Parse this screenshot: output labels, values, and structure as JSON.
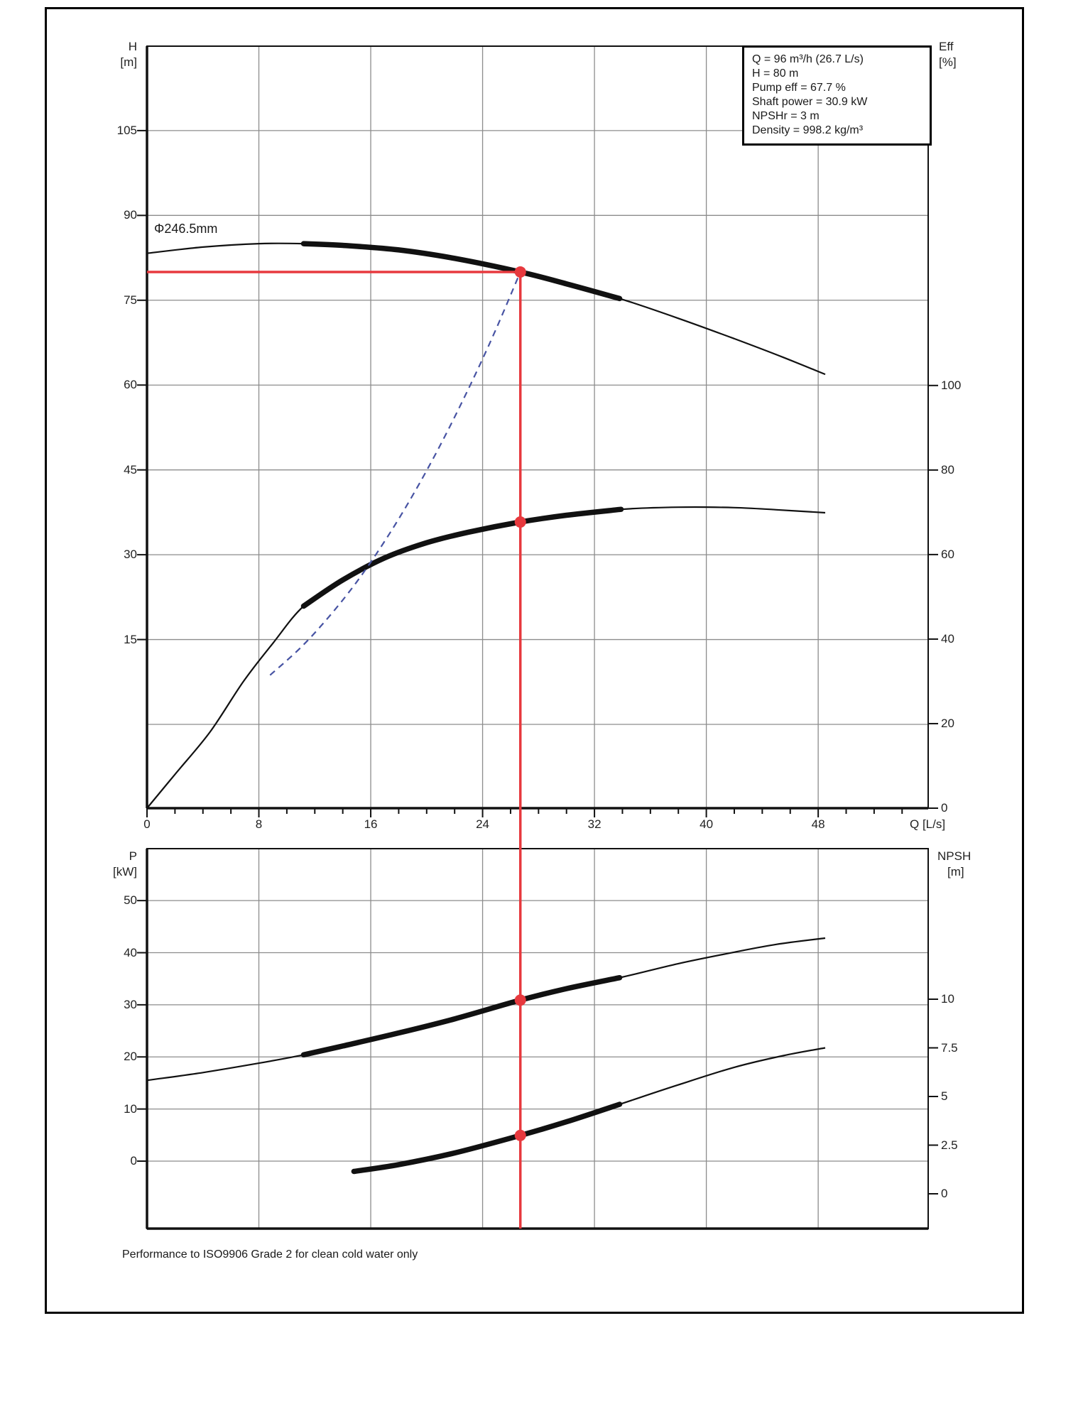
{
  "figure": {
    "phi_label": "Φ246.5mm",
    "iso_note": "Performance to ISO9906 Grade 2 for clean cold water only",
    "q_axis_label": "Q [L/s]"
  },
  "info_box": {
    "lines": [
      "Q = 96 m³/h (26.7 L/s)",
      "H = 80 m",
      "Pump eff = 67.7 %",
      "Shaft power = 30.9 kW",
      "NPSHr = 3 m",
      "Density = 998.2 kg/m³"
    ]
  },
  "axes": {
    "top_left": {
      "name": "H",
      "unit": "[m]"
    },
    "top_right": {
      "name": "Eff",
      "unit": "[%]"
    },
    "bottom_left": {
      "name": "P",
      "unit": "[kW]"
    },
    "bottom_right": {
      "name": "NPSH",
      "unit": "[m]"
    }
  },
  "colors": {
    "red": "#e7393e",
    "blue": "#4753a3",
    "grid": "#8c8c8c",
    "axis": "#111111",
    "curve": "#111111"
  },
  "chart_data": {
    "type": "line",
    "title": "Pump performance curves",
    "x_axis": {
      "label": "Q [L/s]",
      "ticks": [
        0,
        8,
        16,
        24,
        32,
        40,
        48
      ],
      "minor_step": 2,
      "max": 55.9
    },
    "top_chart": {
      "left_axis_label": "H [m]",
      "right_axis_label": "Eff [%]",
      "h_tick_labels": [
        105,
        90,
        75,
        60,
        45,
        30,
        15
      ],
      "h_gridlines": [
        105,
        90,
        75,
        60,
        45,
        30,
        15,
        0
      ],
      "eff_tick_labels": [
        100,
        80,
        60,
        40,
        20,
        0
      ],
      "impeller_label": "Φ246.5mm"
    },
    "bottom_chart": {
      "left_axis_label": "P [kW]",
      "right_axis_label": "NPSH [m]",
      "p_tick_labels": [
        50,
        40,
        30,
        20,
        10,
        0
      ],
      "p_gridlines": [
        50,
        40,
        30,
        20,
        10,
        0
      ],
      "npsh_tick_labels": [
        10,
        7.5,
        5,
        2.5,
        0
      ]
    },
    "series": [
      {
        "name": "head-curve",
        "chart": "top",
        "axis": "H",
        "style": "solid",
        "thick_range": [
          11.2,
          33.8
        ],
        "points": [
          [
            0,
            83.3
          ],
          [
            4,
            84.4
          ],
          [
            8,
            85.0
          ],
          [
            11.2,
            85.0
          ],
          [
            14,
            84.7
          ],
          [
            18,
            83.9
          ],
          [
            22,
            82.4
          ],
          [
            26.7,
            80.0
          ],
          [
            30,
            77.9
          ],
          [
            33.8,
            75.3
          ],
          [
            38,
            71.8
          ],
          [
            42,
            68.2
          ],
          [
            45.5,
            64.9
          ],
          [
            48.5,
            61.9
          ]
        ]
      },
      {
        "name": "efficiency-curve",
        "chart": "top",
        "axis": "Eff",
        "style": "solid",
        "thick_range": [
          11.2,
          33.9
        ],
        "points": [
          [
            0,
            0
          ],
          [
            2,
            8
          ],
          [
            4.5,
            18
          ],
          [
            6.9,
            30
          ],
          [
            9,
            39
          ],
          [
            11.2,
            47.8
          ],
          [
            14,
            54
          ],
          [
            17,
            59.2
          ],
          [
            20,
            62.8
          ],
          [
            23,
            65.3
          ],
          [
            26.7,
            67.7
          ],
          [
            30,
            69.3
          ],
          [
            33.9,
            70.7
          ],
          [
            38,
            71.2
          ],
          [
            42,
            71.1
          ],
          [
            45,
            70.6
          ],
          [
            48.5,
            69.9
          ]
        ]
      },
      {
        "name": "system-curve",
        "chart": "top",
        "axis": "H",
        "style": "dashed",
        "color": "blue",
        "points": [
          [
            8.8,
            8.7
          ],
          [
            11,
            13.6
          ],
          [
            13,
            19.0
          ],
          [
            15,
            25.2
          ],
          [
            17,
            32.4
          ],
          [
            19,
            40.5
          ],
          [
            21,
            49.5
          ],
          [
            23,
            59.4
          ],
          [
            24.8,
            69.0
          ],
          [
            26.7,
            80.0
          ]
        ]
      },
      {
        "name": "power-curve",
        "chart": "bottom",
        "axis": "P",
        "style": "solid",
        "thick_range": [
          11.2,
          33.8
        ],
        "points": [
          [
            0,
            15.5
          ],
          [
            4,
            17.0
          ],
          [
            8,
            18.8
          ],
          [
            11.2,
            20.4
          ],
          [
            14,
            22.1
          ],
          [
            18,
            24.6
          ],
          [
            22,
            27.3
          ],
          [
            26.7,
            30.9
          ],
          [
            30,
            33.1
          ],
          [
            33.8,
            35.2
          ],
          [
            38,
            37.9
          ],
          [
            42,
            40.1
          ],
          [
            45,
            41.6
          ],
          [
            48.5,
            42.8
          ]
        ]
      },
      {
        "name": "npsh-curve",
        "chart": "bottom",
        "axis": "NPSH",
        "style": "solid",
        "thick_range": [
          14.8,
          33.8
        ],
        "points": [
          [
            14.8,
            1.15
          ],
          [
            18,
            1.5
          ],
          [
            22,
            2.1
          ],
          [
            26.7,
            3.0
          ],
          [
            30,
            3.7
          ],
          [
            33.8,
            4.6
          ],
          [
            38,
            5.6
          ],
          [
            42,
            6.5
          ],
          [
            45.5,
            7.1
          ],
          [
            48.5,
            7.5
          ]
        ]
      }
    ],
    "duty_point": {
      "Q_Ls": 26.7,
      "Q_m3h": 96,
      "H_m": 80,
      "eff_pct": 67.7,
      "shaft_power_kW": 30.9,
      "NPSHr_m": 3,
      "density_kg_m3": 998.2
    }
  }
}
